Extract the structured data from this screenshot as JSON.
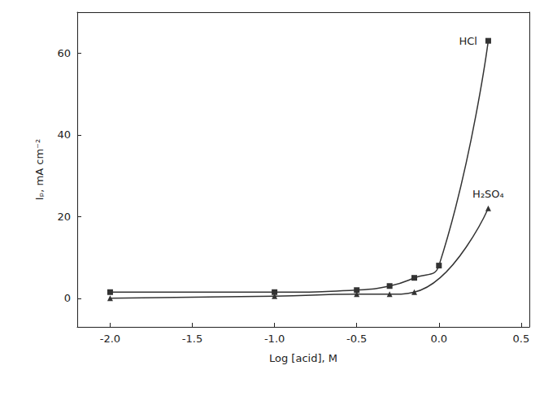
{
  "chart_data": {
    "type": "line",
    "x_label": "Log [acid], M",
    "y_label": "Iₚ, mA cm⁻²",
    "xlim": [
      -2.2,
      0.55
    ],
    "xticks": [
      {
        "value": -2,
        "label": "-2.0"
      },
      -1.5,
      {
        "value": -1,
        "label": "-1.0"
      },
      -0.5,
      {
        "value": 0,
        "label": "0.0"
      },
      0.5
    ],
    "ylim": [
      -7,
      70
    ],
    "yticks": [
      0,
      20,
      40,
      60
    ],
    "grid": false,
    "series": [
      {
        "name": "HCl",
        "color": "#333333",
        "marker": "square",
        "line_style": "solid",
        "x": [
          -2,
          -1,
          -0.5,
          -0.3,
          -0.15,
          0,
          0.3
        ],
        "values": [
          1.5,
          1.5,
          2,
          3,
          5,
          8,
          63
        ]
      },
      {
        "name": "H₂SO₄",
        "color": "#333333",
        "marker": "triangle",
        "line_style": "solid",
        "x": [
          -2,
          -1,
          -0.5,
          -0.3,
          -0.15,
          0.3
        ],
        "values": [
          0,
          0.5,
          1,
          1,
          1.5,
          22
        ]
      }
    ]
  }
}
